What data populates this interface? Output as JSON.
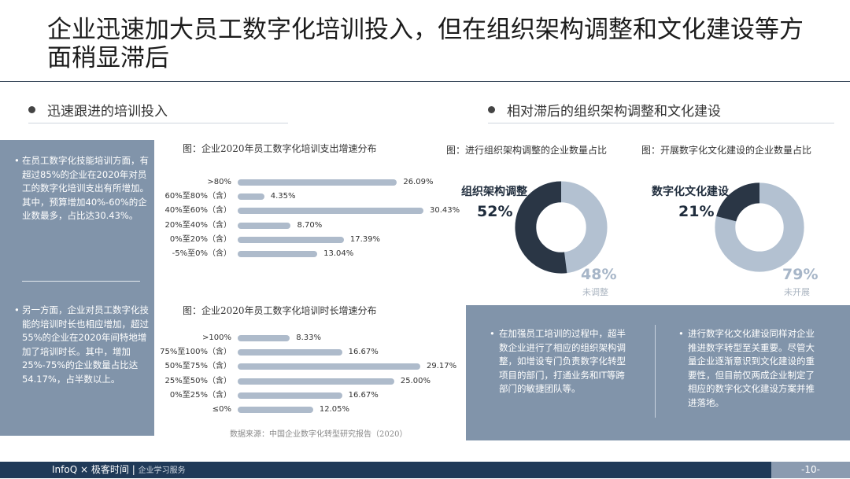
{
  "title": "企业迅速加大员工数字化培训投入，但在组织架构调整和文化建设等方面稍显滞后",
  "sections": {
    "left": "迅速跟进的培训投入",
    "right": "相对滞后的组织架构调整和文化建设"
  },
  "sidebar": {
    "para1": "在员工数字化技能培训方面，有超过85%的企业在2020年对员工的数字化培训支出有所增加。其中，预算增加40%-60%的企业数最多，占比达30.43%。",
    "para2": "另一方面，企业对员工数字化技能的培训时长也相应增加，超过55%的企业在2020年间特地增加了培训时长。其中，增加25%-75%的企业数量占比达54.17%，占半数以上。"
  },
  "chart_data": [
    {
      "type": "bar",
      "title": "图：企业2020年员工数字化培训支出增速分布",
      "categories": [
        ">80%",
        "60%至80%（含）",
        "40%至60%（含）",
        "20%至40%（含）",
        "0%至20%（含）",
        "-5%至0%（含）"
      ],
      "values": [
        26.09,
        4.35,
        30.43,
        8.7,
        17.39,
        13.04
      ],
      "value_labels": [
        "26.09%",
        "4.35%",
        "30.43%",
        "8.70%",
        "17.39%",
        "13.04%"
      ],
      "xlim": [
        0,
        30.43
      ],
      "orientation": "horizontal",
      "bar_color": "#aebbcb"
    },
    {
      "type": "bar",
      "title": "图：企业2020年员工数字化培训时长增速分布",
      "categories": [
        ">100%",
        "75%至100%（含）",
        "50%至75%（含）",
        "25%至50%（含）",
        "0%至25%（含）",
        "≤0%"
      ],
      "values": [
        8.33,
        16.67,
        29.17,
        25.0,
        16.67,
        12.05
      ],
      "value_labels": [
        "8.33%",
        "16.67%",
        "29.17%",
        "25.00%",
        "16.67%",
        "12.05%"
      ],
      "xlim": [
        0,
        29.17
      ],
      "orientation": "horizontal",
      "bar_color": "#aebbcb"
    },
    {
      "type": "pie",
      "caption": "图：进行组织架构调整的企业数量占比",
      "name": "组织架构调整",
      "values": [
        52,
        48
      ],
      "labels": [
        "52%",
        "48%"
      ],
      "rest_label": "未调整",
      "colors": [
        "#2a3645",
        "#b3c1d1"
      ]
    },
    {
      "type": "pie",
      "caption": "图：开展数字化文化建设的企业数量占比",
      "name": "数字化文化建设",
      "values": [
        21,
        79
      ],
      "labels": [
        "21%",
        "79%"
      ],
      "rest_label": "未开展",
      "colors": [
        "#2a3645",
        "#b3c1d1"
      ]
    }
  ],
  "source": "数据来源：中国企业数字化转型研究报告（2020）",
  "bottom": {
    "para1": "在加强员工培训的过程中，超半数企业进行了相应的组织架构调整，如增设专门负责数字化转型项目的部门，打通业务和IT等跨部门的敏捷团队等。",
    "para2": "进行数字化文化建设同样对企业推进数字转型至关重要。尽管大量企业逐渐意识到文化建设的重要性，但目前仅两成企业制定了相应的数字化文化建设方案并推进落地。"
  },
  "footer": {
    "brand": "InfoQ",
    "sep": "×",
    "partner": "极客时间",
    "bar": "|",
    "service": "企业学习服务",
    "page": "-10-"
  }
}
